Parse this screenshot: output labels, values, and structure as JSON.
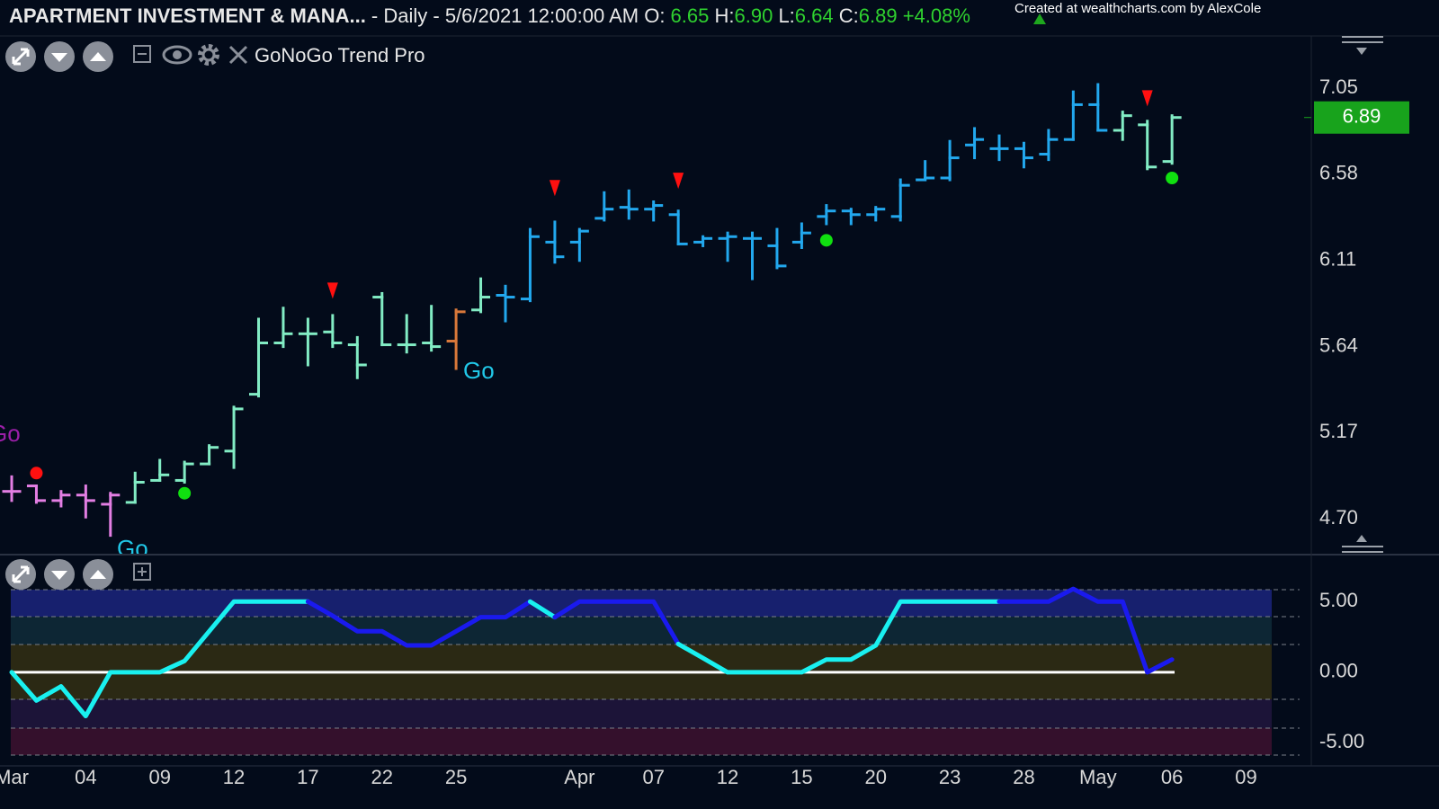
{
  "header": {
    "parts": [
      {
        "text": "APARTMENT INVESTMENT & MANA...",
        "color": "#e8e8e8",
        "bold": true
      },
      {
        "text": " - Daily - 5/6/2021 12:00:00 AM O: ",
        "color": "#e8e8e8"
      },
      {
        "text": "6.65",
        "color": "#2fd12f"
      },
      {
        "text": " H:",
        "color": "#e8e8e8"
      },
      {
        "text": "6.90",
        "color": "#2fd12f"
      },
      {
        "text": " L:",
        "color": "#e8e8e8"
      },
      {
        "text": "6.64",
        "color": "#2fd12f"
      },
      {
        "text": " C:",
        "color": "#e8e8e8"
      },
      {
        "text": "6.89",
        "color": "#2fd12f"
      },
      {
        "text": " +4.08%",
        "color": "#2fd12f"
      }
    ],
    "credit": "Created at wealthcharts.com by AlexCole",
    "indicator": "GoNoGo Trend Pro"
  },
  "chart_data": [
    {
      "type": "ohlc",
      "open": [
        4.85,
        4.88,
        4.8,
        4.83,
        4.78,
        4.79,
        4.91,
        4.91,
        5.0,
        5.07,
        5.38,
        5.66,
        5.71,
        5.72,
        5.65,
        5.91,
        5.65,
        5.66,
        5.67,
        5.84,
        5.92,
        5.9,
        6.21,
        6.21,
        6.34,
        6.4,
        6.39,
        6.36,
        6.21,
        6.23,
        6.23,
        6.19,
        6.21,
        6.35,
        6.38,
        6.36,
        6.35,
        6.55,
        6.56,
        6.74,
        6.72,
        6.72,
        6.69,
        6.77,
        6.96,
        6.82,
        6.85,
        6.65,
        null,
        null,
        null
      ],
      "high": [
        4.93,
        4.88,
        4.85,
        4.88,
        4.84,
        4.95,
        5.02,
        5.01,
        5.1,
        5.31,
        5.79,
        5.85,
        5.79,
        5.81,
        5.69,
        5.93,
        5.81,
        5.86,
        5.84,
        6.01,
        5.97,
        6.28,
        6.32,
        6.28,
        6.48,
        6.49,
        6.43,
        6.38,
        6.24,
        6.26,
        6.26,
        6.28,
        6.31,
        6.41,
        6.39,
        6.4,
        6.55,
        6.65,
        6.76,
        6.83,
        6.79,
        6.75,
        6.82,
        7.03,
        7.07,
        6.92,
        6.87,
        6.9,
        null,
        null,
        null
      ],
      "low": [
        4.8,
        4.79,
        4.77,
        4.71,
        4.61,
        4.79,
        4.91,
        4.9,
        5.0,
        4.98,
        5.37,
        5.64,
        5.54,
        5.64,
        5.47,
        5.65,
        5.61,
        5.62,
        5.52,
        5.83,
        5.78,
        5.89,
        6.1,
        6.11,
        6.33,
        6.34,
        6.33,
        6.2,
        6.19,
        6.11,
        6.01,
        6.07,
        6.18,
        6.31,
        6.31,
        6.33,
        6.33,
        6.55,
        6.55,
        6.67,
        6.66,
        6.62,
        6.66,
        6.77,
        6.82,
        6.77,
        6.61,
        6.64,
        null,
        null,
        null
      ],
      "close": [
        4.85,
        4.8,
        4.83,
        4.8,
        4.83,
        4.9,
        4.94,
        5.0,
        5.09,
        5.3,
        5.66,
        5.71,
        5.71,
        5.66,
        5.54,
        5.65,
        5.65,
        5.64,
        5.83,
        5.91,
        5.91,
        6.24,
        6.13,
        6.27,
        6.39,
        6.39,
        6.41,
        6.2,
        6.23,
        6.24,
        6.23,
        6.08,
        6.26,
        6.38,
        6.36,
        6.39,
        6.52,
        6.56,
        6.67,
        6.77,
        6.72,
        6.67,
        6.77,
        6.96,
        6.82,
        6.9,
        6.62,
        6.89,
        null,
        null,
        null
      ],
      "colors": [
        "#e37ee3",
        "#e37ee3",
        "#e37ee3",
        "#e37ee3",
        "#e37ee3",
        "#82ecc4",
        "#82ecc4",
        "#82ecc4",
        "#82ecc4",
        "#82ecc4",
        "#82ecc4",
        "#82ecc4",
        "#82ecc4",
        "#82ecc4",
        "#82ecc4",
        "#82ecc4",
        "#82ecc4",
        "#82ecc4",
        "#d9783a",
        "#82ecc4",
        "#22a8ee",
        "#22a8ee",
        "#22a8ee",
        "#22a8ee",
        "#22a8ee",
        "#22a8ee",
        "#22a8ee",
        "#22a8ee",
        "#22a8ee",
        "#22a8ee",
        "#22a8ee",
        "#22a8ee",
        "#22a8ee",
        "#22a8ee",
        "#22a8ee",
        "#22a8ee",
        "#22a8ee",
        "#22a8ee",
        "#22a8ee",
        "#22a8ee",
        "#22a8ee",
        "#22a8ee",
        "#22a8ee",
        "#22a8ee",
        "#22a8ee",
        "#82ecc4",
        "#82ecc4",
        "#82ecc4",
        null,
        null,
        null
      ],
      "ylim": [
        4.51,
        7.33
      ],
      "yticks": [
        {
          "value": 4.7,
          "label": "4.70"
        },
        5.17,
        5.64,
        6.11,
        6.58,
        7.05
      ],
      "markers": [
        {
          "shape": "triangle-down",
          "color": "#ff1010",
          "values": [
            null,
            null,
            null,
            null,
            null,
            null,
            null,
            null,
            null,
            null,
            null,
            null,
            null,
            5.94,
            null,
            null,
            null,
            null,
            null,
            null,
            null,
            null,
            6.5,
            null,
            null,
            null,
            null,
            6.54,
            null,
            null,
            null,
            null,
            null,
            null,
            null,
            null,
            null,
            null,
            null,
            null,
            null,
            null,
            null,
            null,
            null,
            null,
            6.99,
            null,
            null,
            null,
            null
          ]
        },
        {
          "shape": "circle",
          "color": "#ff1010",
          "values": [
            null,
            4.95,
            null,
            null,
            null,
            null,
            null,
            null,
            null,
            null,
            null,
            null,
            null,
            null,
            null,
            null,
            null,
            null,
            null,
            null,
            null,
            null,
            null,
            null,
            null,
            null,
            null,
            null,
            null,
            null,
            null,
            null,
            null,
            null,
            null,
            null,
            null,
            null,
            null,
            null,
            null,
            null,
            null,
            null,
            null,
            null,
            null,
            null,
            null,
            null,
            null
          ]
        },
        {
          "shape": "circle",
          "color": "#10e010",
          "values": [
            null,
            null,
            null,
            null,
            null,
            null,
            null,
            4.84,
            null,
            null,
            null,
            null,
            null,
            null,
            null,
            null,
            null,
            null,
            null,
            null,
            null,
            null,
            null,
            null,
            null,
            null,
            null,
            null,
            null,
            null,
            null,
            null,
            null,
            6.22,
            null,
            null,
            null,
            null,
            null,
            null,
            null,
            null,
            null,
            null,
            null,
            null,
            null,
            6.56,
            null,
            null,
            null
          ]
        }
      ],
      "annotations": [
        {
          "text": "Go",
          "color": "#9b1fa8"
        },
        {
          "text": "Go",
          "color": "#21c8e8"
        },
        {
          "text": "Go",
          "color": "#21c8e8"
        }
      ],
      "last_color": "#18a31c"
    },
    {
      "type": "line",
      "categories": [
        "Mar",
        null,
        null,
        "04",
        null,
        null,
        "09",
        null,
        null,
        "12",
        null,
        null,
        "17",
        null,
        null,
        "22",
        null,
        null,
        "25",
        null,
        null,
        null,
        null,
        "Apr",
        null,
        null,
        "07",
        null,
        null,
        "12",
        null,
        null,
        "15",
        null,
        null,
        "20",
        null,
        null,
        "23",
        null,
        null,
        "28",
        null,
        null,
        "May",
        null,
        null,
        "06",
        null,
        null,
        "09"
      ],
      "series": [
        {
          "values": [
            0,
            -2.0,
            -1.0,
            -3.1,
            0,
            0,
            0,
            0.8,
            2.9,
            5,
            5,
            5,
            5,
            4.0,
            2.9,
            2.9,
            1.9,
            1.9,
            2.9,
            3.9,
            3.9,
            5,
            3.9,
            5,
            5,
            5,
            5,
            2.0,
            1.0,
            0,
            0,
            0,
            0,
            0.9,
            0.9,
            1.9,
            5,
            5,
            5,
            5,
            5,
            5,
            5,
            5.9,
            5,
            5,
            0,
            0.9,
            null,
            null,
            null
          ],
          "colors": [
            "#19f0f0",
            "#19f0f0",
            "#19f0f0",
            "#19f0f0",
            "#19f0f0",
            "#19f0f0",
            "#19f0f0",
            "#19f0f0",
            "#19f0f0",
            "#19f0f0",
            "#19f0f0",
            "#19f0f0",
            "#19f0f0",
            "#1a1aee",
            "#1a1aee",
            "#1a1aee",
            "#1a1aee",
            "#1a1aee",
            "#1a1aee",
            "#1a1aee",
            "#1a1aee",
            "#1a1aee",
            "#19f0f0",
            "#1a1aee",
            "#1a1aee",
            "#1a1aee",
            "#1a1aee",
            "#1a1aee",
            "#19f0f0",
            "#19f0f0",
            "#19f0f0",
            "#19f0f0",
            "#19f0f0",
            "#19f0f0",
            "#19f0f0",
            "#19f0f0",
            "#19f0f0",
            "#19f0f0",
            "#19f0f0",
            "#19f0f0",
            "#19f0f0",
            "#1a1aee",
            "#1a1aee",
            "#1a1aee",
            "#1a1aee",
            "#1a1aee",
            "#1a1aee",
            "#1a1aee",
            null,
            null,
            null
          ]
        }
      ],
      "ylim": [
        -6.5,
        6.1
      ],
      "yticks": [
        {
          "value": 5,
          "label": "5.00"
        },
        {
          "value": 0,
          "label": "0.00"
        },
        {
          "value": -5,
          "label": "-5.00"
        }
      ]
    }
  ]
}
